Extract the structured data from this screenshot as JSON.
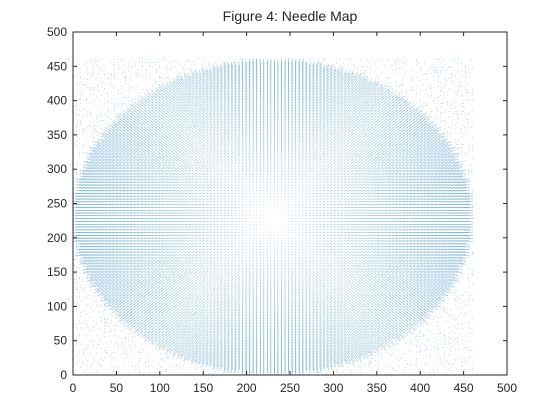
{
  "window": {
    "title": "Figure 4: Needle Map"
  },
  "chart_data": {
    "type": "quiver",
    "title": "Figure 4: Needle Map",
    "xlabel": "",
    "ylabel": "",
    "xlim": [
      0,
      500
    ],
    "ylim": [
      0,
      500
    ],
    "xticks": [
      0,
      50,
      100,
      150,
      200,
      250,
      300,
      350,
      400,
      450,
      500
    ],
    "yticks": [
      0,
      50,
      100,
      150,
      200,
      250,
      300,
      350,
      400,
      450,
      500
    ],
    "data_extent": {
      "x": [
        0,
        460
      ],
      "y": [
        0,
        460
      ]
    },
    "field": {
      "center": [
        230,
        230
      ],
      "radius": 225,
      "grid_step": 4,
      "needle_scale": 9
    },
    "series_color": "#0072BD",
    "grid": false,
    "legend": "none"
  }
}
